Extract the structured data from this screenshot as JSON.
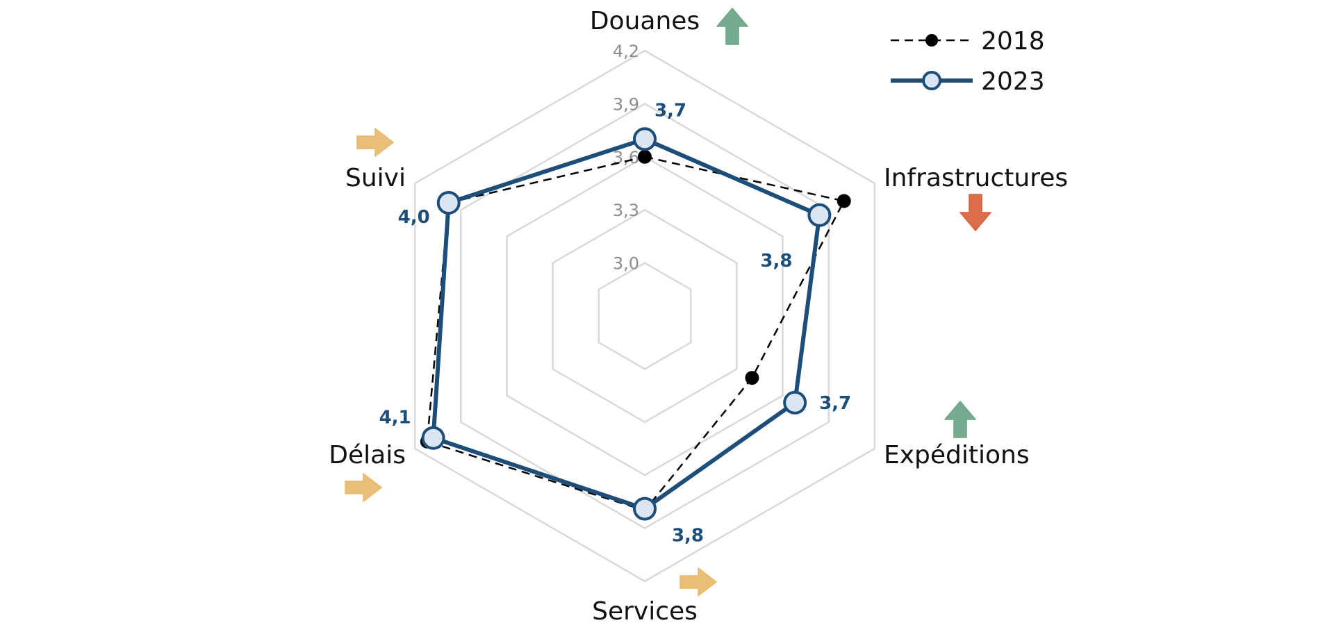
{
  "chart_data": {
    "type": "radar",
    "axes": [
      "Douanes",
      "Infrastructures",
      "Expéditions",
      "Services",
      "Délais",
      "Suivi"
    ],
    "ticks": [
      "3,0",
      "3,3",
      "3,6",
      "3,9",
      "4,2"
    ],
    "tick_values": [
      3.0,
      3.3,
      3.6,
      3.9,
      4.2
    ],
    "rlim": [
      2.7,
      4.2
    ],
    "series": [
      {
        "name": "2018",
        "values": [
          3.6,
          4.0,
          3.4,
          3.8,
          4.12,
          3.98
        ],
        "style": "dashed-black-dots",
        "color": "#000000"
      },
      {
        "name": "2023",
        "values": [
          3.7,
          3.84,
          3.68,
          3.79,
          4.08,
          3.98
        ],
        "style": "solid-blue-open-circles",
        "color": "#1d4e79"
      }
    ],
    "value_labels": [
      "3,7",
      "3,8",
      "3,7",
      "3,8",
      "4,1",
      "4,0"
    ],
    "trends": [
      {
        "axis": "Douanes",
        "icon": "arrow-up-icon",
        "color": "#6aa487"
      },
      {
        "axis": "Infrastructures",
        "icon": "arrow-down-icon",
        "color": "#d95f3b"
      },
      {
        "axis": "Expéditions",
        "icon": "arrow-up-icon",
        "color": "#6aa487"
      },
      {
        "axis": "Services",
        "icon": "arrow-right-icon",
        "color": "#e8b96a"
      },
      {
        "axis": "Délais",
        "icon": "arrow-right-icon",
        "color": "#e8b96a"
      },
      {
        "axis": "Suivi",
        "icon": "arrow-right-icon",
        "color": "#e8b96a"
      }
    ],
    "grid": true,
    "legend": "top-right"
  }
}
